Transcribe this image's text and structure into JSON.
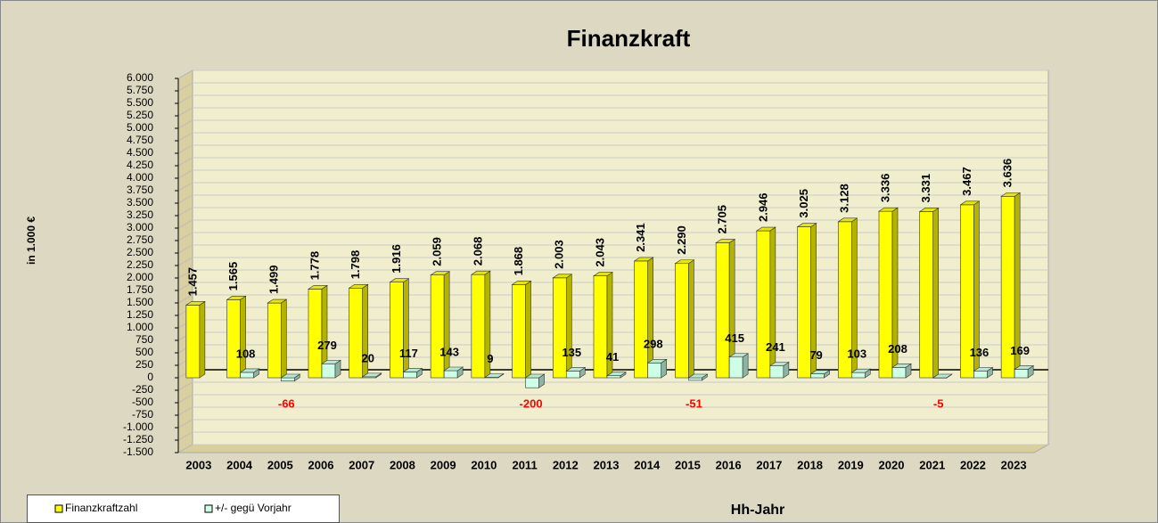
{
  "chart_data": {
    "type": "bar3d",
    "title": "Finanzkraft",
    "y_axis_label": "in 1.000 €",
    "x_axis_label": "Hh-Jahr",
    "categories": [
      "2003",
      "2004",
      "2005",
      "2006",
      "2007",
      "2008",
      "2009",
      "2010",
      "2011",
      "2012",
      "2013",
      "2014",
      "2015",
      "2016",
      "2017",
      "2018",
      "2019",
      "2020",
      "2021",
      "2022",
      "2023"
    ],
    "series": [
      {
        "name": "Finanzkraftzahl",
        "color": "#ffff00",
        "values": [
          1457,
          1565,
          1499,
          1778,
          1798,
          1916,
          2059,
          2068,
          1868,
          2003,
          2043,
          2341,
          2290,
          2705,
          2946,
          3025,
          3128,
          3336,
          3331,
          3467,
          3636
        ],
        "value_labels": [
          "1.457",
          "1.565",
          "1.499",
          "1.778",
          "1.798",
          "1.916",
          "2.059",
          "2.068",
          "1.868",
          "2.003",
          "2.043",
          "2.341",
          "2.290",
          "2.705",
          "2.946",
          "3.025",
          "3.128",
          "3.336",
          "3.331",
          "3.467",
          "3.636"
        ]
      },
      {
        "name": "+/- gegü Vorjahr",
        "color": "#ccffe6",
        "values": [
          null,
          108,
          -66,
          279,
          20,
          117,
          143,
          9,
          -200,
          135,
          41,
          298,
          -51,
          415,
          241,
          79,
          103,
          208,
          -5,
          136,
          169
        ]
      }
    ],
    "negative_label_color": "#ff0000",
    "ylim": [
      -1500,
      6000
    ],
    "yticks": [
      {
        "value": -1500,
        "label": "-1.500"
      },
      {
        "value": -1250,
        "label": "-1.250"
      },
      {
        "value": -1000,
        "label": "-1.000"
      },
      -750,
      -500,
      -250,
      0,
      250,
      500,
      750,
      {
        "value": 1000,
        "label": "1.000"
      },
      {
        "value": 1250,
        "label": "1.250"
      },
      {
        "value": 1500,
        "label": "1.500"
      },
      {
        "value": 1750,
        "label": "1.750"
      },
      {
        "value": 2000,
        "label": "2.000"
      },
      {
        "value": 2250,
        "label": "2.250"
      },
      {
        "value": 2500,
        "label": "2.500"
      },
      {
        "value": 2750,
        "label": "2.750"
      },
      {
        "value": 3000,
        "label": "3.000"
      },
      {
        "value": 3250,
        "label": "3.250"
      },
      {
        "value": 3500,
        "label": "3.500"
      },
      {
        "value": 3750,
        "label": "3.750"
      },
      {
        "value": 4000,
        "label": "4.000"
      },
      {
        "value": 4250,
        "label": "4.250"
      },
      {
        "value": 4500,
        "label": "4.500"
      },
      {
        "value": 4750,
        "label": "4.750"
      },
      {
        "value": 5000,
        "label": "5.000"
      },
      {
        "value": 5250,
        "label": "5.250"
      },
      {
        "value": 5500,
        "label": "5.500"
      },
      {
        "value": 5750,
        "label": "5.750"
      },
      {
        "value": 6000,
        "label": "6.000"
      }
    ],
    "grid": true,
    "legend": "bottom-left"
  }
}
